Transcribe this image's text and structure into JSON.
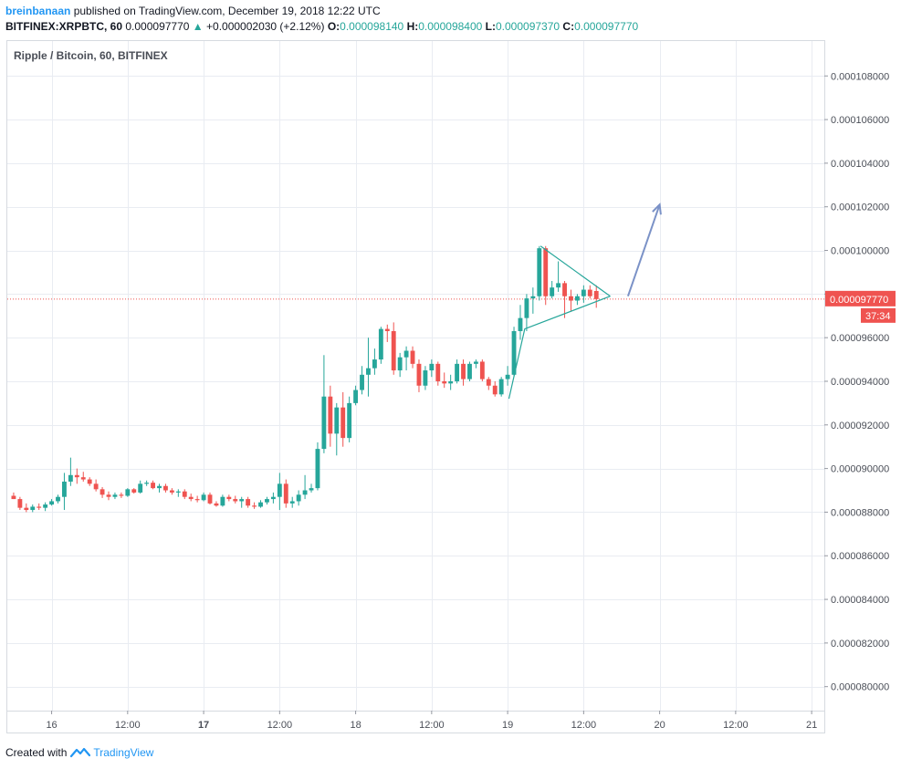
{
  "header": {
    "author": "breinbanaan",
    "published_text": "published on TradingView.com, December 19, 2018 12:22 UTC",
    "symbol": "BITFINEX:XRPBTC, 60",
    "price": "0.000097770",
    "change_arrow": "▲",
    "change": "+0.000002030 (+2.12%)",
    "o_label": "O:",
    "o_value": "0.000098140",
    "h_label": "H:",
    "h_value": "0.000098400",
    "l_label": "L:",
    "l_value": "0.000097370",
    "c_label": "C:",
    "c_value": "0.000097770"
  },
  "footer": {
    "created_with": "Created with",
    "brand": "TradingView"
  },
  "colors": {
    "up": "#26a69a",
    "down": "#ef5350",
    "grid": "#e9ecf2",
    "arrow": "#7b92c7",
    "price_line": "#ef5350"
  },
  "chart_data": {
    "type": "candlestick",
    "title": "Ripple / Bitcoin, 60, BITFINEX",
    "timeframe": "60",
    "x_tick_labels": [
      "16",
      "12:00",
      "17",
      "12:00",
      "18",
      "12:00",
      "19",
      "12:00",
      "20",
      "12:00",
      "21"
    ],
    "x_tick_hours": [
      0,
      12,
      24,
      36,
      48,
      60,
      72,
      84,
      96,
      108,
      120
    ],
    "x_tick_bold": [
      false,
      false,
      true,
      false,
      false,
      false,
      false,
      false,
      false,
      false,
      false
    ],
    "x_range_hours": [
      -7,
      122
    ],
    "y_tick_labels": [
      "0.000080000",
      "0.000082000",
      "0.000084000",
      "0.000086000",
      "0.000088000",
      "0.000090000",
      "0.000092000",
      "0.000094000",
      "0.000096000",
      "0.000098000",
      "0.000100000",
      "0.000102000",
      "0.000104000",
      "0.000106000",
      "0.000108000"
    ],
    "y_tick_values": [
      80.0,
      82.0,
      84.0,
      86.0,
      88.0,
      90.0,
      92.0,
      94.0,
      96.0,
      98.0,
      100.0,
      102.0,
      104.0,
      106.0,
      108.0
    ],
    "y_unit_multiplier": 1e-06,
    "y_range": [
      78.9,
      109.6
    ],
    "grid": true,
    "current_price_label": "0.000097770",
    "current_price_value": 97.77,
    "countdown_label": "37:34",
    "candles": [
      {
        "t": -6,
        "o": 88.75,
        "h": 88.9,
        "l": 88.6,
        "c": 88.6
      },
      {
        "t": -5,
        "o": 88.6,
        "h": 88.7,
        "l": 88.1,
        "c": 88.2
      },
      {
        "t": -4,
        "o": 88.2,
        "h": 88.4,
        "l": 88.0,
        "c": 88.1
      },
      {
        "t": -3,
        "o": 88.1,
        "h": 88.35,
        "l": 88.0,
        "c": 88.25
      },
      {
        "t": -2,
        "o": 88.25,
        "h": 88.4,
        "l": 88.1,
        "c": 88.2
      },
      {
        "t": -1,
        "o": 88.2,
        "h": 88.45,
        "l": 88.05,
        "c": 88.35
      },
      {
        "t": 0,
        "o": 88.35,
        "h": 88.6,
        "l": 88.3,
        "c": 88.5
      },
      {
        "t": 1,
        "o": 88.5,
        "h": 88.8,
        "l": 88.4,
        "c": 88.7
      },
      {
        "t": 2,
        "o": 88.7,
        "h": 89.8,
        "l": 88.1,
        "c": 89.4
      },
      {
        "t": 3,
        "o": 89.4,
        "h": 90.5,
        "l": 89.2,
        "c": 89.7
      },
      {
        "t": 4,
        "o": 89.7,
        "h": 90.0,
        "l": 89.3,
        "c": 89.6
      },
      {
        "t": 5,
        "o": 89.6,
        "h": 89.85,
        "l": 89.4,
        "c": 89.5
      },
      {
        "t": 6,
        "o": 89.5,
        "h": 89.6,
        "l": 89.2,
        "c": 89.3
      },
      {
        "t": 7,
        "o": 89.3,
        "h": 89.5,
        "l": 88.95,
        "c": 89.05
      },
      {
        "t": 8,
        "o": 89.05,
        "h": 89.15,
        "l": 88.65,
        "c": 88.8
      },
      {
        "t": 9,
        "o": 88.8,
        "h": 88.95,
        "l": 88.55,
        "c": 88.7
      },
      {
        "t": 10,
        "o": 88.7,
        "h": 88.9,
        "l": 88.6,
        "c": 88.8
      },
      {
        "t": 11,
        "o": 88.8,
        "h": 88.9,
        "l": 88.65,
        "c": 88.75
      },
      {
        "t": 12,
        "o": 88.75,
        "h": 89.1,
        "l": 88.7,
        "c": 89.05
      },
      {
        "t": 13,
        "o": 89.05,
        "h": 89.1,
        "l": 88.85,
        "c": 88.9
      },
      {
        "t": 14,
        "o": 88.9,
        "h": 89.45,
        "l": 88.85,
        "c": 89.3
      },
      {
        "t": 15,
        "o": 89.3,
        "h": 89.45,
        "l": 89.2,
        "c": 89.35
      },
      {
        "t": 16,
        "o": 89.35,
        "h": 89.45,
        "l": 89.05,
        "c": 89.1
      },
      {
        "t": 17,
        "o": 89.1,
        "h": 89.3,
        "l": 88.9,
        "c": 89.2
      },
      {
        "t": 18,
        "o": 89.2,
        "h": 89.3,
        "l": 88.9,
        "c": 89.0
      },
      {
        "t": 19,
        "o": 89.0,
        "h": 89.1,
        "l": 88.8,
        "c": 88.9
      },
      {
        "t": 20,
        "o": 88.9,
        "h": 89.05,
        "l": 88.7,
        "c": 88.95
      },
      {
        "t": 21,
        "o": 88.95,
        "h": 89.05,
        "l": 88.6,
        "c": 88.7
      },
      {
        "t": 22,
        "o": 88.7,
        "h": 88.85,
        "l": 88.5,
        "c": 88.6
      },
      {
        "t": 23,
        "o": 88.6,
        "h": 88.75,
        "l": 88.45,
        "c": 88.55
      },
      {
        "t": 24,
        "o": 88.55,
        "h": 88.9,
        "l": 88.5,
        "c": 88.8
      },
      {
        "t": 25,
        "o": 88.8,
        "h": 88.9,
        "l": 88.35,
        "c": 88.4
      },
      {
        "t": 26,
        "o": 88.4,
        "h": 88.5,
        "l": 88.25,
        "c": 88.3
      },
      {
        "t": 27,
        "o": 88.3,
        "h": 88.8,
        "l": 88.25,
        "c": 88.7
      },
      {
        "t": 28,
        "o": 88.7,
        "h": 88.8,
        "l": 88.5,
        "c": 88.6
      },
      {
        "t": 29,
        "o": 88.6,
        "h": 88.75,
        "l": 88.4,
        "c": 88.5
      },
      {
        "t": 30,
        "o": 88.5,
        "h": 88.7,
        "l": 88.2,
        "c": 88.6
      },
      {
        "t": 31,
        "o": 88.6,
        "h": 88.7,
        "l": 88.2,
        "c": 88.3
      },
      {
        "t": 32,
        "o": 88.3,
        "h": 88.45,
        "l": 88.15,
        "c": 88.25
      },
      {
        "t": 33,
        "o": 88.25,
        "h": 88.55,
        "l": 88.2,
        "c": 88.45
      },
      {
        "t": 34,
        "o": 88.45,
        "h": 88.7,
        "l": 88.35,
        "c": 88.6
      },
      {
        "t": 35,
        "o": 88.6,
        "h": 88.9,
        "l": 88.4,
        "c": 88.7
      },
      {
        "t": 36,
        "o": 88.7,
        "h": 89.8,
        "l": 88.1,
        "c": 89.3
      },
      {
        "t": 37,
        "o": 89.3,
        "h": 89.5,
        "l": 88.2,
        "c": 88.4
      },
      {
        "t": 38,
        "o": 88.4,
        "h": 88.7,
        "l": 88.2,
        "c": 88.5
      },
      {
        "t": 39,
        "o": 88.5,
        "h": 89.0,
        "l": 88.3,
        "c": 88.8
      },
      {
        "t": 40,
        "o": 88.8,
        "h": 89.7,
        "l": 88.6,
        "c": 89.0
      },
      {
        "t": 41,
        "o": 89.0,
        "h": 89.3,
        "l": 88.9,
        "c": 89.1
      },
      {
        "t": 42,
        "o": 89.1,
        "h": 91.2,
        "l": 89.0,
        "c": 90.9
      },
      {
        "t": 43,
        "o": 90.9,
        "h": 95.2,
        "l": 90.7,
        "c": 93.3
      },
      {
        "t": 44,
        "o": 93.3,
        "h": 93.8,
        "l": 91.0,
        "c": 91.6
      },
      {
        "t": 45,
        "o": 91.6,
        "h": 93.0,
        "l": 90.6,
        "c": 92.8
      },
      {
        "t": 46,
        "o": 92.8,
        "h": 93.5,
        "l": 91.0,
        "c": 91.4
      },
      {
        "t": 47,
        "o": 91.4,
        "h": 93.3,
        "l": 91.2,
        "c": 93.0
      },
      {
        "t": 48,
        "o": 93.0,
        "h": 93.8,
        "l": 92.9,
        "c": 93.6
      },
      {
        "t": 49,
        "o": 93.6,
        "h": 94.7,
        "l": 93.4,
        "c": 94.3
      },
      {
        "t": 50,
        "o": 94.3,
        "h": 96.0,
        "l": 93.3,
        "c": 94.6
      },
      {
        "t": 51,
        "o": 94.6,
        "h": 95.5,
        "l": 94.3,
        "c": 95.0
      },
      {
        "t": 52,
        "o": 95.0,
        "h": 96.5,
        "l": 94.8,
        "c": 96.4
      },
      {
        "t": 53,
        "o": 96.4,
        "h": 96.6,
        "l": 95.8,
        "c": 96.3
      },
      {
        "t": 54,
        "o": 96.3,
        "h": 96.7,
        "l": 94.3,
        "c": 94.5
      },
      {
        "t": 55,
        "o": 94.5,
        "h": 95.3,
        "l": 94.2,
        "c": 95.1
      },
      {
        "t": 56,
        "o": 95.1,
        "h": 95.6,
        "l": 94.5,
        "c": 95.4
      },
      {
        "t": 57,
        "o": 95.4,
        "h": 95.6,
        "l": 94.6,
        "c": 94.8
      },
      {
        "t": 58,
        "o": 94.8,
        "h": 95.0,
        "l": 93.5,
        "c": 93.8
      },
      {
        "t": 59,
        "o": 93.8,
        "h": 94.7,
        "l": 93.6,
        "c": 94.5
      },
      {
        "t": 60,
        "o": 94.5,
        "h": 95.0,
        "l": 94.2,
        "c": 94.8
      },
      {
        "t": 61,
        "o": 94.8,
        "h": 94.9,
        "l": 93.8,
        "c": 94.0
      },
      {
        "t": 62,
        "o": 94.0,
        "h": 94.4,
        "l": 93.7,
        "c": 93.9
      },
      {
        "t": 63,
        "o": 93.9,
        "h": 94.3,
        "l": 93.6,
        "c": 94.0
      },
      {
        "t": 64,
        "o": 94.0,
        "h": 95.0,
        "l": 93.9,
        "c": 94.8
      },
      {
        "t": 65,
        "o": 94.8,
        "h": 95.0,
        "l": 93.8,
        "c": 94.1
      },
      {
        "t": 66,
        "o": 94.1,
        "h": 94.9,
        "l": 94.0,
        "c": 94.8
      },
      {
        "t": 67,
        "o": 94.8,
        "h": 95.0,
        "l": 94.6,
        "c": 94.9
      },
      {
        "t": 68,
        "o": 94.9,
        "h": 95.0,
        "l": 94.0,
        "c": 94.1
      },
      {
        "t": 69,
        "o": 94.1,
        "h": 94.2,
        "l": 93.6,
        "c": 93.8
      },
      {
        "t": 70,
        "o": 93.8,
        "h": 94.0,
        "l": 93.3,
        "c": 93.4
      },
      {
        "t": 71,
        "o": 93.4,
        "h": 94.2,
        "l": 93.3,
        "c": 94.1
      },
      {
        "t": 72,
        "o": 94.1,
        "h": 94.7,
        "l": 93.8,
        "c": 94.3
      },
      {
        "t": 73,
        "o": 94.3,
        "h": 96.5,
        "l": 94.2,
        "c": 96.3
      },
      {
        "t": 74,
        "o": 96.3,
        "h": 97.5,
        "l": 95.9,
        "c": 96.9
      },
      {
        "t": 75,
        "o": 96.9,
        "h": 98.0,
        "l": 96.3,
        "c": 97.8
      },
      {
        "t": 76,
        "o": 97.8,
        "h": 98.3,
        "l": 97.1,
        "c": 97.9
      },
      {
        "t": 77,
        "o": 97.9,
        "h": 100.2,
        "l": 97.7,
        "c": 100.1
      },
      {
        "t": 78,
        "o": 100.1,
        "h": 100.2,
        "l": 97.5,
        "c": 97.9
      },
      {
        "t": 79,
        "o": 97.9,
        "h": 98.6,
        "l": 97.8,
        "c": 98.3
      },
      {
        "t": 80,
        "o": 98.3,
        "h": 99.5,
        "l": 98.1,
        "c": 98.5
      },
      {
        "t": 81,
        "o": 98.5,
        "h": 98.6,
        "l": 96.9,
        "c": 97.9
      },
      {
        "t": 82,
        "o": 97.9,
        "h": 98.2,
        "l": 97.2,
        "c": 97.7
      },
      {
        "t": 83,
        "o": 97.7,
        "h": 98.0,
        "l": 97.5,
        "c": 97.9
      },
      {
        "t": 84,
        "o": 97.9,
        "h": 98.4,
        "l": 97.6,
        "c": 98.2
      },
      {
        "t": 85,
        "o": 98.2,
        "h": 98.4,
        "l": 97.8,
        "c": 97.9
      },
      {
        "t": 86,
        "o": 98.14,
        "h": 98.4,
        "l": 97.37,
        "c": 97.77
      }
    ],
    "drawings": {
      "triangle_upper": [
        [
          77.2,
          100.2
        ],
        [
          88.2,
          97.9
        ]
      ],
      "triangle_lower": [
        [
          72.2,
          93.2
        ],
        [
          74.7,
          96.4
        ],
        [
          88.2,
          97.9
        ]
      ],
      "arrow": [
        [
          91.0,
          97.9
        ],
        [
          96.0,
          102.1
        ]
      ]
    }
  }
}
